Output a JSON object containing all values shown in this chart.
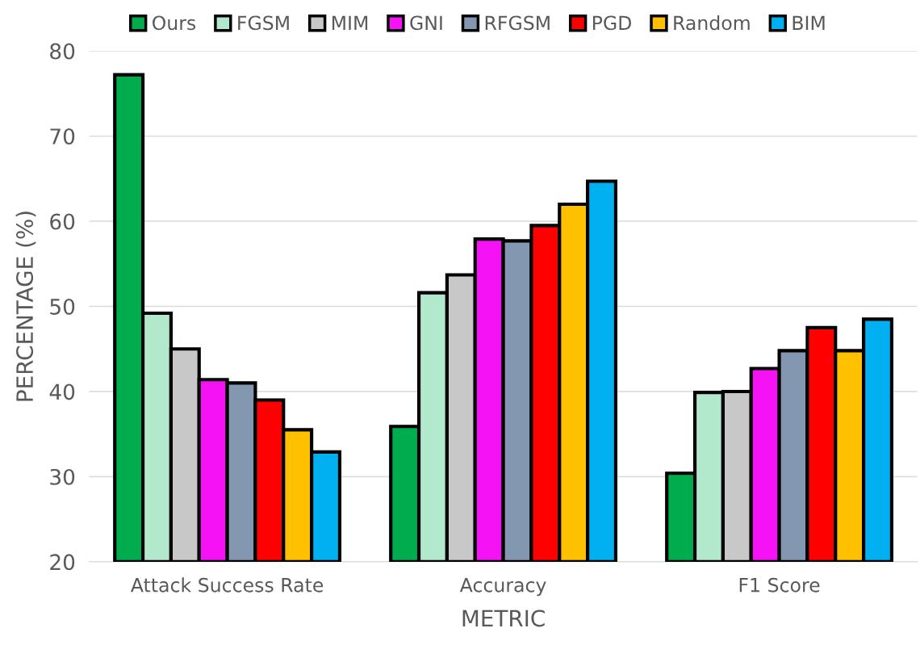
{
  "chart_data": {
    "type": "bar",
    "xlabel": "METRIC",
    "ylabel": "PERCENTAGE (%)",
    "categories": [
      "Attack Success Rate",
      "Accuracy",
      "F1 Score"
    ],
    "series": [
      {
        "name": "Ours",
        "color": "#00ac4e",
        "values": [
          77.2,
          35.9,
          30.4
        ]
      },
      {
        "name": "FGSM",
        "color": "#b2e8cc",
        "values": [
          49.2,
          51.6,
          39.9
        ]
      },
      {
        "name": "MIM",
        "color": "#c8c8c8",
        "values": [
          45.0,
          53.7,
          40.0
        ]
      },
      {
        "name": "GNI",
        "color": "#f512f5",
        "values": [
          41.4,
          57.9,
          42.7
        ]
      },
      {
        "name": "RFGSM",
        "color": "#8497b0",
        "values": [
          41.0,
          57.7,
          44.8
        ]
      },
      {
        "name": "PGD",
        "color": "#ff0000",
        "values": [
          39.0,
          59.5,
          47.5
        ]
      },
      {
        "name": "Random",
        "color": "#ffc000",
        "values": [
          35.5,
          62.0,
          44.8
        ]
      },
      {
        "name": "BIM",
        "color": "#00b0f0",
        "values": [
          32.9,
          64.7,
          48.5
        ]
      }
    ],
    "ylim": [
      20,
      80
    ],
    "yticks": [
      20,
      30,
      40,
      50,
      60,
      70,
      80
    ],
    "grid": "y",
    "legend": "top"
  }
}
